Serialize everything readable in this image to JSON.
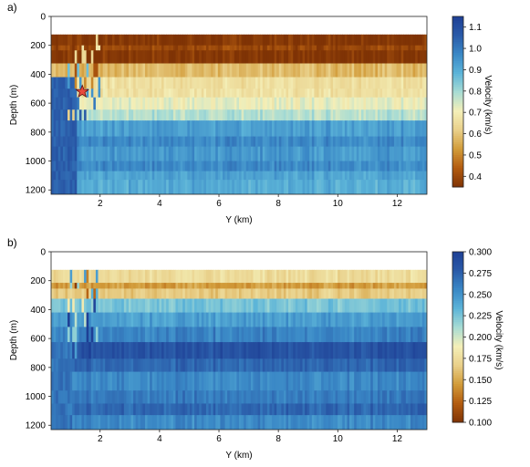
{
  "chart_data": [
    {
      "type": "heatmap",
      "panel_label": "a)",
      "xlabel": "Y (km)",
      "ylabel": "Depth (m)",
      "xlim": [
        0.35,
        13.0
      ],
      "ylim": [
        1230,
        0
      ],
      "data_ylim": [
        1230,
        125
      ],
      "x_ticks": [
        2,
        4,
        6,
        8,
        10,
        12
      ],
      "y_ticks": [
        0,
        200,
        400,
        600,
        800,
        1000,
        1200
      ],
      "colorbar": {
        "label": "Velocity (km/s)",
        "min": 0.35,
        "max": 1.15,
        "ticks": [
          0.4,
          0.5,
          0.6,
          0.7,
          0.8,
          0.9,
          1.0,
          1.1
        ],
        "colormap": [
          "#7f3305",
          "#b35c10",
          "#d29c3a",
          "#e9d08a",
          "#f4efb8",
          "#a8dcd4",
          "#5cb4d8",
          "#3a88c6",
          "#2a5aa8",
          "#1e3f95"
        ]
      },
      "layers": [
        {
          "top": 125,
          "bottom": 200,
          "value": 0.36
        },
        {
          "top": 200,
          "bottom": 235,
          "value": 0.4
        },
        {
          "top": 235,
          "bottom": 325,
          "value": 0.36
        },
        {
          "top": 325,
          "bottom": 420,
          "value": 0.58
        },
        {
          "top": 420,
          "bottom": 500,
          "value": 0.66
        },
        {
          "top": 500,
          "bottom": 560,
          "value": 0.67
        },
        {
          "top": 560,
          "bottom": 645,
          "value": 0.72
        },
        {
          "top": 645,
          "bottom": 720,
          "value": 0.78
        },
        {
          "top": 720,
          "bottom": 830,
          "value": 0.93
        },
        {
          "top": 830,
          "bottom": 900,
          "value": 0.97
        },
        {
          "top": 900,
          "bottom": 1000,
          "value": 0.94
        },
        {
          "top": 1000,
          "bottom": 1070,
          "value": 0.97
        },
        {
          "top": 1070,
          "bottom": 1130,
          "value": 0.92
        },
        {
          "top": 1130,
          "bottom": 1230,
          "value": 0.9
        }
      ],
      "left_zone": {
        "x_end": 1.2,
        "value": 1.05,
        "depth_from": 400
      },
      "marker": {
        "shape": "star",
        "x": 1.4,
        "y": 520,
        "color": "#e84a3c"
      }
    },
    {
      "type": "heatmap",
      "panel_label": "b)",
      "xlabel": "Y (km)",
      "ylabel": "Depth (m)",
      "xlim": [
        0.35,
        13.0
      ],
      "ylim": [
        1230,
        0
      ],
      "data_ylim": [
        1230,
        125
      ],
      "x_ticks": [
        2,
        4,
        6,
        8,
        10,
        12
      ],
      "y_ticks": [
        0,
        200,
        400,
        600,
        800,
        1000,
        1200
      ],
      "colorbar": {
        "label": "Velocity (km/s)",
        "min": 0.1,
        "max": 0.3,
        "ticks": [
          0.1,
          0.125,
          0.15,
          0.175,
          0.2,
          0.225,
          0.25,
          0.275,
          0.3
        ],
        "colormap": [
          "#7f3305",
          "#b35c10",
          "#d29c3a",
          "#e9d08a",
          "#f4efb8",
          "#a8dcd4",
          "#5cb4d8",
          "#3a88c6",
          "#2a5aa8",
          "#1e3f95"
        ]
      },
      "layers": [
        {
          "top": 125,
          "bottom": 215,
          "value": 0.175
        },
        {
          "top": 215,
          "bottom": 255,
          "value": 0.145
        },
        {
          "top": 255,
          "bottom": 325,
          "value": 0.165
        },
        {
          "top": 325,
          "bottom": 420,
          "value": 0.225
        },
        {
          "top": 420,
          "bottom": 520,
          "value": 0.245
        },
        {
          "top": 520,
          "bottom": 625,
          "value": 0.258
        },
        {
          "top": 625,
          "bottom": 740,
          "value": 0.285
        },
        {
          "top": 740,
          "bottom": 830,
          "value": 0.272
        },
        {
          "top": 830,
          "bottom": 960,
          "value": 0.255
        },
        {
          "top": 960,
          "bottom": 1050,
          "value": 0.262
        },
        {
          "top": 1050,
          "bottom": 1130,
          "value": 0.272
        },
        {
          "top": 1130,
          "bottom": 1230,
          "value": 0.255
        }
      ],
      "left_zone": {
        "x_end": 1.0,
        "value": 0.265,
        "depth_from": 600
      }
    }
  ]
}
